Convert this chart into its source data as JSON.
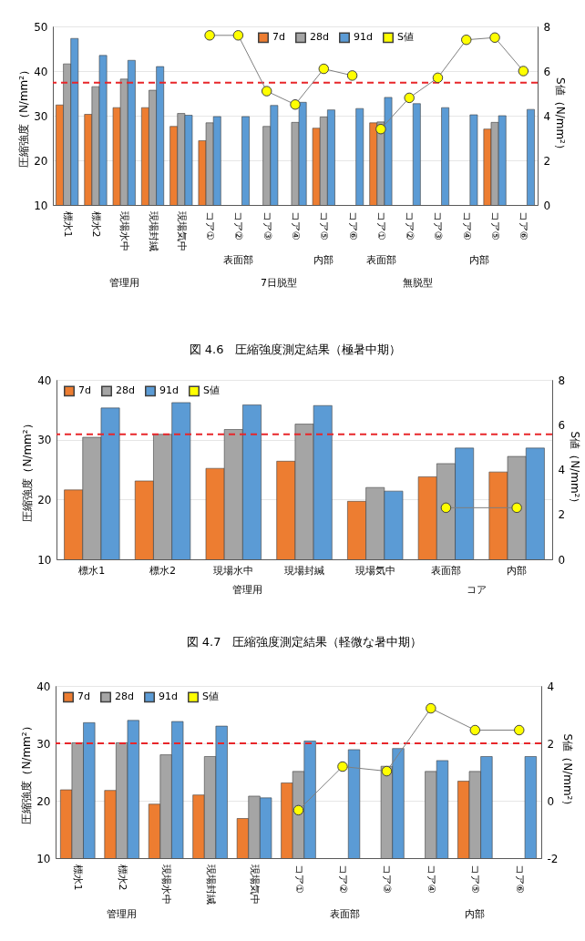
{
  "chart_data": [
    {
      "type": "bar",
      "title": "図 4.6　圧縮強度測定結果（極暑中期）",
      "ylabel": "圧縮強度（N/mm²）",
      "y2label": "S値（N/mm²）",
      "categories": [
        "標水1",
        "標水2",
        "現場水中",
        "現場封緘",
        "現場気中",
        "コア①",
        "コア②",
        "コア③",
        "コア④",
        "コア⑤",
        "コア⑥",
        "コア①",
        "コア②",
        "コア③",
        "コア④",
        "コア⑤",
        "コア⑥"
      ],
      "series": [
        {
          "name": "7d",
          "color": "#ed7d31",
          "values": [
            32.4,
            30.3,
            31.8,
            31.8,
            27.6,
            24.4,
            null,
            null,
            null,
            27.2,
            null,
            28.4,
            null,
            null,
            null,
            27.0,
            null
          ]
        },
        {
          "name": "28d",
          "color": "#a5a5a5",
          "values": [
            41.6,
            36.5,
            38.2,
            35.7,
            30.5,
            28.4,
            null,
            27.6,
            28.5,
            29.7,
            null,
            28.6,
            null,
            null,
            null,
            28.5,
            null
          ]
        },
        {
          "name": "91d",
          "color": "#5b9bd5",
          "values": [
            47.3,
            43.5,
            42.4,
            41.0,
            30.1,
            29.8,
            29.8,
            32.3,
            33.0,
            31.3,
            31.6,
            34.1,
            32.7,
            31.8,
            30.2,
            30.0,
            31.4
          ]
        },
        {
          "name": "S値",
          "type": "line",
          "axis": "y2",
          "color": "#ffff00",
          "values": [
            null,
            null,
            null,
            null,
            null,
            7.6,
            7.6,
            5.1,
            4.5,
            6.1,
            5.8,
            null,
            null,
            null,
            null,
            null,
            null
          ]
        },
        {
          "type": "line",
          "axis": "y2",
          "color": "#ffff00",
          "values": [
            null,
            null,
            null,
            null,
            null,
            null,
            null,
            null,
            null,
            null,
            null,
            3.4,
            4.8,
            5.7,
            7.4,
            7.5,
            6.0
          ]
        }
      ],
      "ylim": [
        10,
        50
      ],
      "yticks": [
        10,
        20,
        30,
        40,
        50
      ],
      "y2lim": [
        0,
        8
      ],
      "y2ticks": [
        0,
        2,
        4,
        6,
        8
      ],
      "grid": "y",
      "legend": "top right",
      "marker": "circle",
      "ref_lines": [
        {
          "axis": "y",
          "value": 37.4,
          "color": "#e8262a",
          "line_style": "dashed"
        }
      ],
      "annotations": [
        "管理用",
        "表面部",
        "7日脱型",
        "内部",
        "表面部",
        "無脱型",
        "内部"
      ]
    },
    {
      "type": "bar",
      "title": "図 4.7　圧縮強度測定結果（軽微な暑中期）",
      "ylabel": "圧縮強度（N/mm²）",
      "y2label": "S値（N/mm²）",
      "categories": [
        "標水1",
        "標水2",
        "現場水中",
        "現場封緘",
        "現場気中",
        "表面部",
        "内部"
      ],
      "series": [
        {
          "name": "7d",
          "color": "#ed7d31",
          "values": [
            21.6,
            23.1,
            25.2,
            26.4,
            19.7,
            23.8,
            24.6
          ]
        },
        {
          "name": "28d",
          "color": "#a5a5a5",
          "values": [
            30.4,
            30.9,
            31.7,
            32.6,
            22.0,
            26.0,
            27.2
          ]
        },
        {
          "name": "91d",
          "color": "#5b9bd5",
          "values": [
            35.3,
            36.2,
            35.8,
            35.7,
            21.4,
            28.6,
            28.6
          ]
        },
        {
          "name": "S値",
          "type": "line",
          "axis": "y2",
          "color": "#ffff00",
          "values": [
            null,
            null,
            null,
            null,
            null,
            2.3,
            2.3
          ]
        }
      ],
      "ylim": [
        10,
        40
      ],
      "yticks": [
        10,
        20,
        30,
        40
      ],
      "y2lim": [
        0,
        8
      ],
      "y2ticks": [
        0,
        2,
        4,
        6,
        8
      ],
      "grid": "y",
      "legend": "top left",
      "marker": "circle",
      "ref_lines": [
        {
          "axis": "y",
          "value": 30.9,
          "color": "#e8262a",
          "line_style": "dashed"
        }
      ],
      "annotations": [
        "管理用",
        "コア"
      ]
    },
    {
      "type": "bar",
      "ylabel": "圧縮強度（N/mm²）",
      "y2label": "S値（N/mm²）",
      "categories": [
        "標水1",
        "標水2",
        "現場水中",
        "現場封緘",
        "現場気中",
        "コア①",
        "コア②",
        "コア③",
        "コア④",
        "コア⑤",
        "コア⑥"
      ],
      "series": [
        {
          "name": "7d",
          "color": "#ed7d31",
          "values": [
            21.9,
            21.8,
            19.4,
            21.0,
            16.9,
            23.1,
            null,
            null,
            null,
            23.4,
            null
          ]
        },
        {
          "name": "28d",
          "color": "#a5a5a5",
          "values": [
            30.1,
            30.1,
            28.0,
            27.7,
            20.8,
            25.1,
            null,
            26.0,
            25.1,
            25.1,
            null
          ]
        },
        {
          "name": "91d",
          "color": "#5b9bd5",
          "values": [
            33.6,
            34.0,
            33.8,
            33.0,
            20.5,
            30.4,
            28.9,
            29.1,
            27.0,
            27.7,
            27.7
          ]
        },
        {
          "name": "S値",
          "type": "line",
          "axis": "y2",
          "color": "#ffff00",
          "values": [
            null,
            null,
            null,
            null,
            null,
            -0.33,
            1.19,
            1.03,
            3.22,
            2.46,
            2.46
          ]
        }
      ],
      "ylim": [
        10,
        40
      ],
      "yticks": [
        10,
        20,
        30,
        40
      ],
      "y2lim": [
        -2,
        4
      ],
      "y2ticks": [
        -2,
        0,
        2,
        4
      ],
      "grid": "y",
      "legend": "top left",
      "marker": "circle",
      "ref_lines": [
        {
          "axis": "y",
          "value": 30.0,
          "color": "#e8262a",
          "line_style": "dashed"
        }
      ],
      "annotations": [
        "管理用",
        "表面部",
        "内部"
      ]
    }
  ]
}
